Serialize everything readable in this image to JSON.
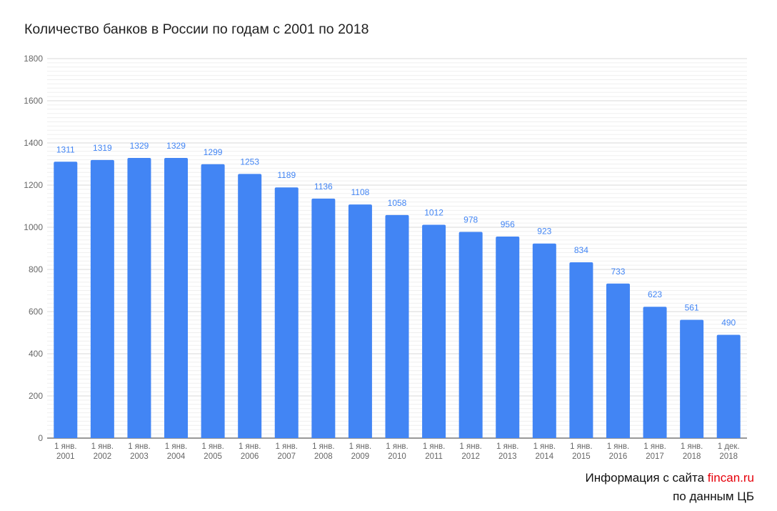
{
  "chart_data": {
    "type": "bar",
    "title": "Количество банков в России по годам с 2001 по 2018",
    "xlabel": "",
    "ylabel": "",
    "ylim": [
      0,
      1800
    ],
    "yticks": [
      0,
      200,
      400,
      600,
      800,
      1000,
      1200,
      1400,
      1600,
      1800
    ],
    "grid": true,
    "legend": "none",
    "categories": [
      [
        "1 янв.",
        "2001"
      ],
      [
        "1 янв.",
        "2002"
      ],
      [
        "1 янв.",
        "2003"
      ],
      [
        "1 янв.",
        "2004"
      ],
      [
        "1 янв.",
        "2005"
      ],
      [
        "1 янв.",
        "2006"
      ],
      [
        "1 янв.",
        "2007"
      ],
      [
        "1 янв.",
        "2008"
      ],
      [
        "1 янв.",
        "2009"
      ],
      [
        "1 янв.",
        "2010"
      ],
      [
        "1 янв.",
        "2011"
      ],
      [
        "1 янв.",
        "2012"
      ],
      [
        "1 янв.",
        "2013"
      ],
      [
        "1 янв.",
        "2014"
      ],
      [
        "1 янв.",
        "2015"
      ],
      [
        "1 янв.",
        "2016"
      ],
      [
        "1 янв.",
        "2017"
      ],
      [
        "1 янв.",
        "2018"
      ],
      [
        "1 дек.",
        "2018"
      ]
    ],
    "values": [
      1311,
      1319,
      1329,
      1329,
      1299,
      1253,
      1189,
      1136,
      1108,
      1058,
      1012,
      978,
      956,
      923,
      834,
      733,
      623,
      561,
      490
    ],
    "colors": {
      "bar": "#4285f4",
      "data_label": "#4285f4",
      "axis_text": "#666666",
      "grid": "#d9d9d9"
    }
  },
  "footer": {
    "info_prefix": "Информация с сайта ",
    "site": "fincan.ru",
    "source": "по данным ЦБ",
    "site_color": "#e6000a"
  }
}
